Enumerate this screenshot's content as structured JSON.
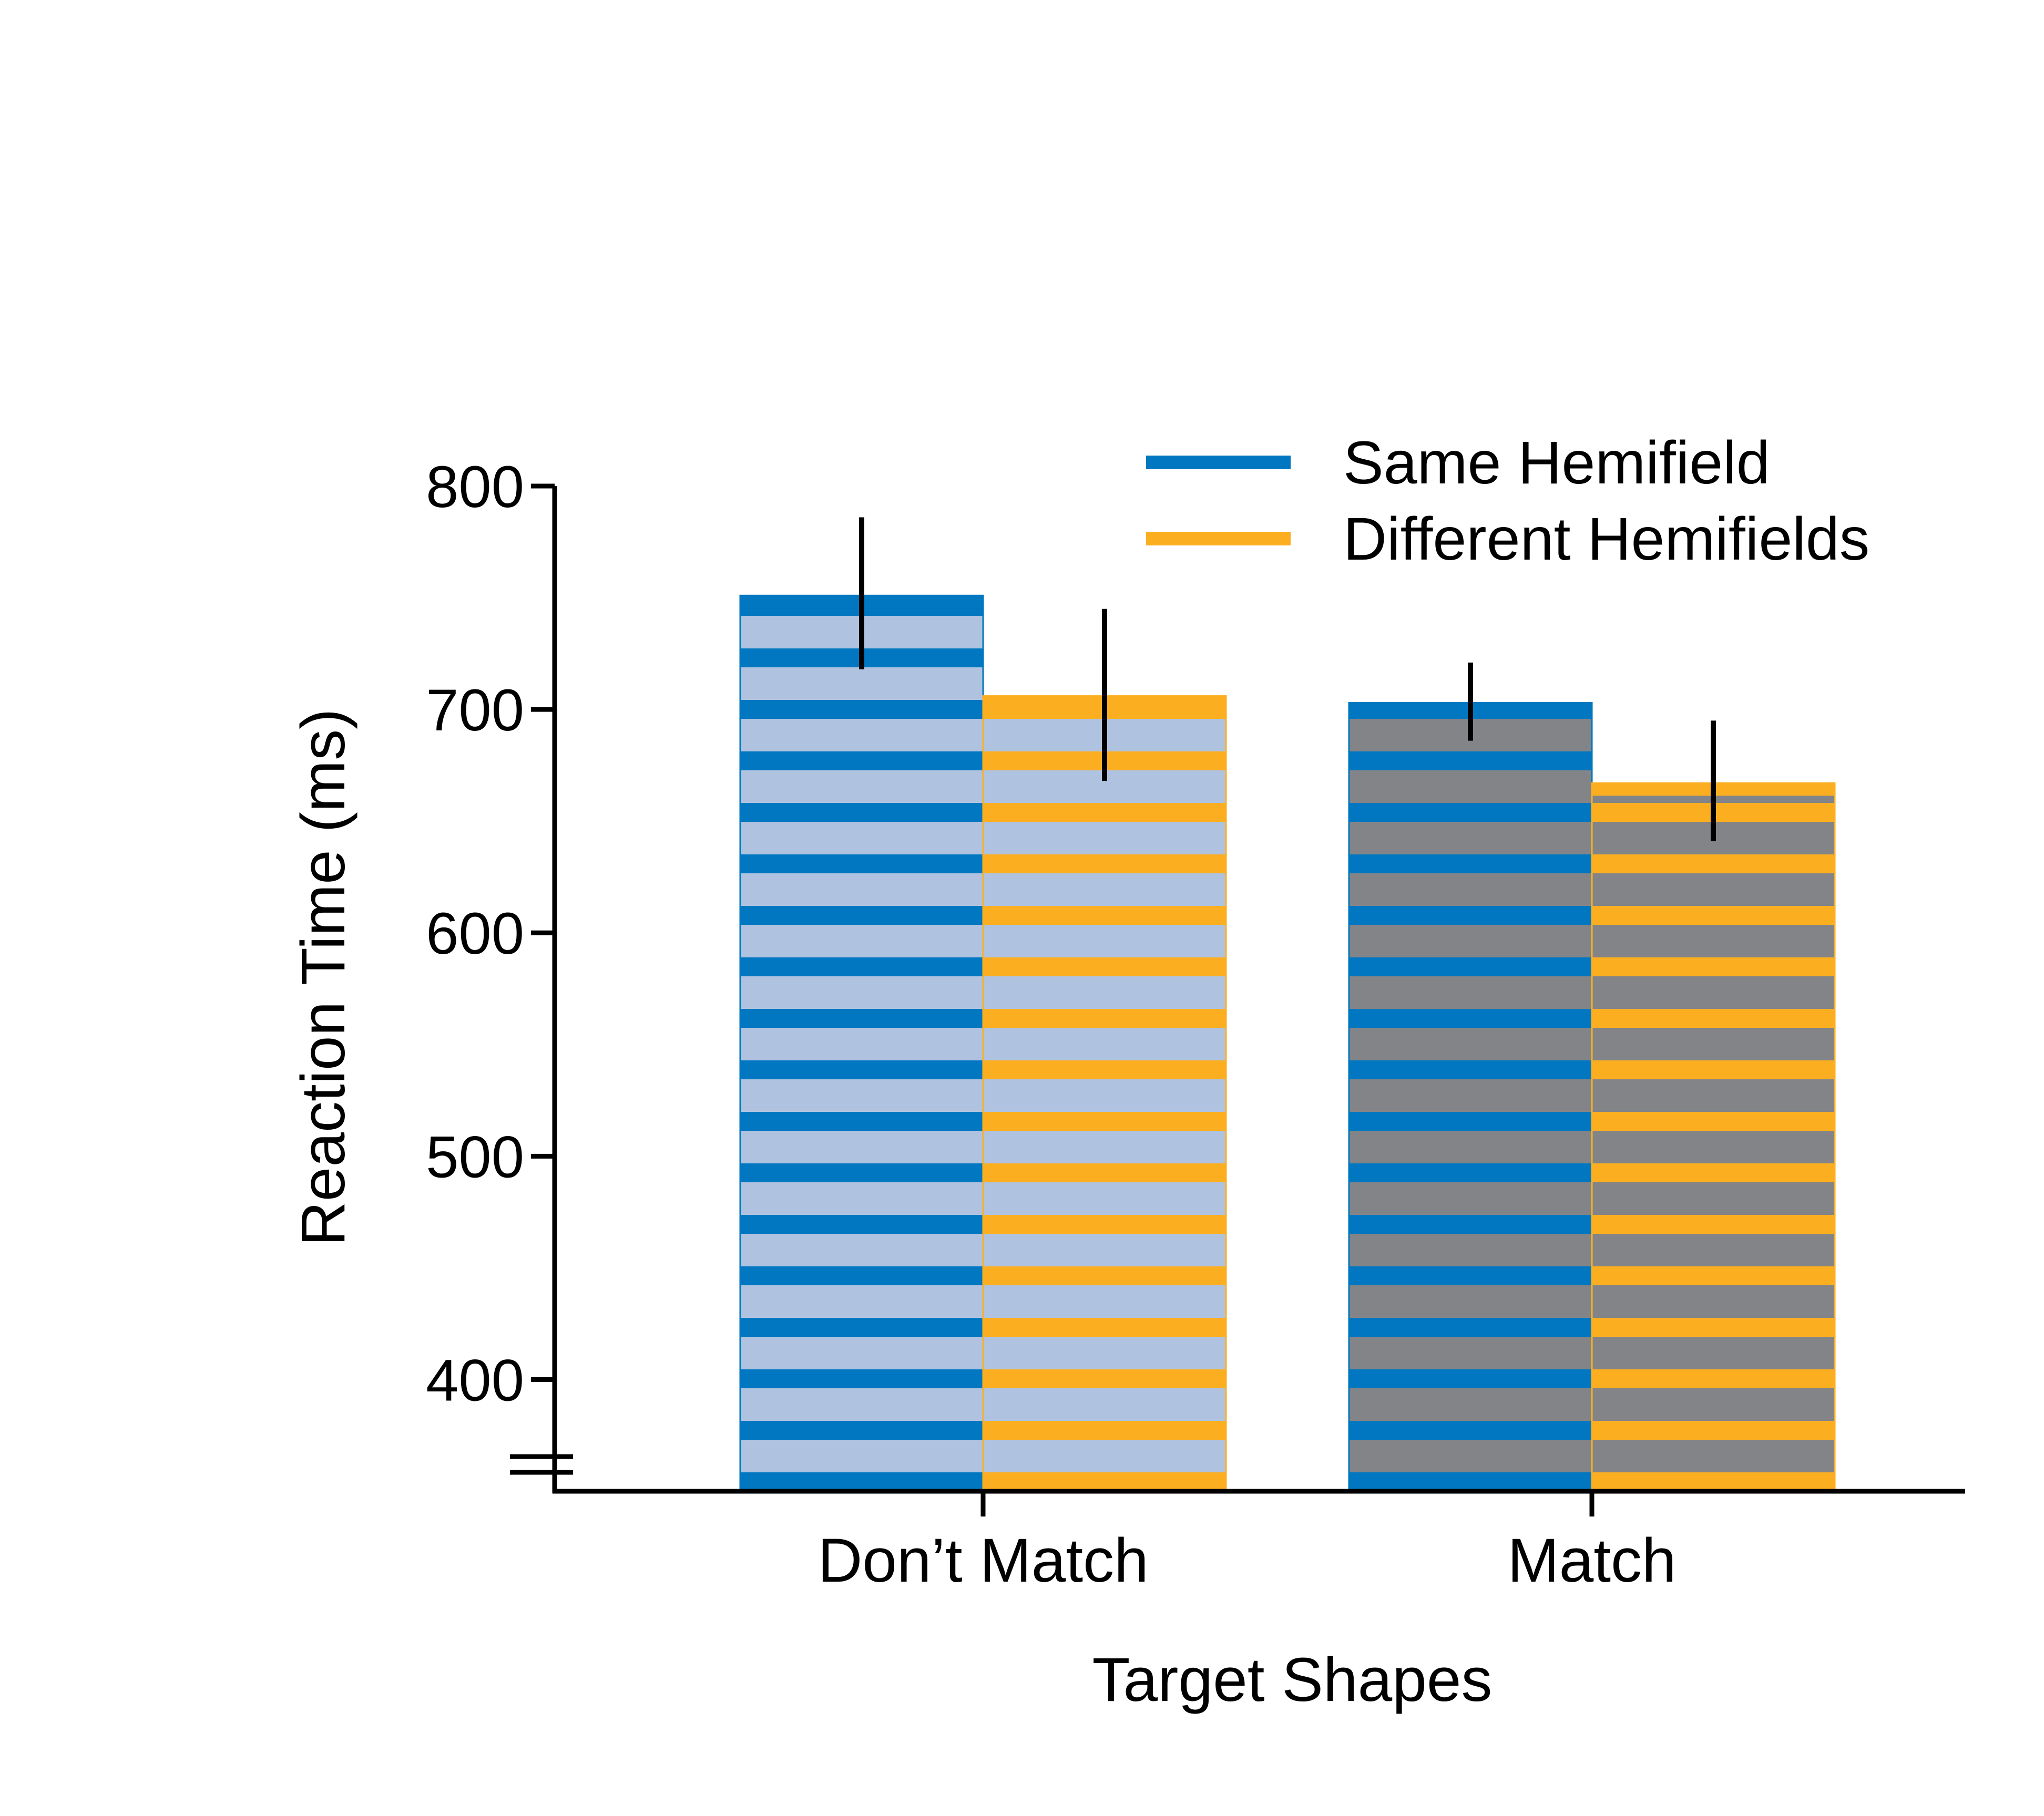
{
  "chart_data": {
    "type": "bar",
    "xlabel": "Target Shapes",
    "ylabel": "Reaction Time (ms)",
    "categories": [
      "Don’t Match",
      "Match"
    ],
    "yticks": [
      400,
      500,
      600,
      700,
      800
    ],
    "ylim": [
      350,
      800
    ],
    "axis_break": true,
    "legend_position": "top-right",
    "series": [
      {
        "name": "Same Hemifield",
        "values": [
          751,
          703
        ],
        "error_low": [
          718,
          686
        ],
        "error_high": [
          786,
          721
        ],
        "stripe_color": "#0077C0"
      },
      {
        "name": "Different Hemifields",
        "values": [
          706,
          667
        ],
        "error_low": [
          668,
          641
        ],
        "error_high": [
          745,
          695
        ],
        "stripe_color": "#FBAF20"
      }
    ],
    "category_fill_colors": [
      "#AFC3E0",
      "#838487"
    ],
    "grid": false
  }
}
